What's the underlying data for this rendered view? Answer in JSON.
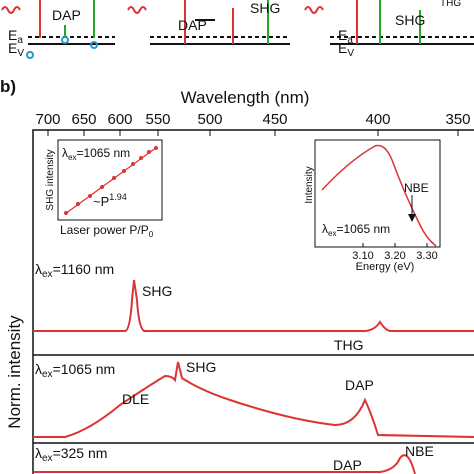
{
  "top_strip": {
    "labels": [
      "DAP",
      "DAP",
      "SHG",
      "SHG",
      "THG"
    ],
    "level_labels": {
      "ea": "E",
      "ea_sub": "a",
      "ev": "E",
      "ev_sub": "V"
    }
  },
  "panel_label": "b)",
  "axes": {
    "x_title": "Wavelength (nm)",
    "x_ticks": [
      "700",
      "650",
      "600",
      "550",
      "500",
      "450",
      "400",
      "350"
    ],
    "y_title": "Norm. intensity"
  },
  "spectra": [
    {
      "excitation": {
        "symbol": "λ",
        "sub": "ex",
        "rest": "=1160 nm"
      },
      "labels": [
        "SHG",
        "THG"
      ]
    },
    {
      "excitation": {
        "symbol": "λ",
        "sub": "ex",
        "rest": "=1065 nm"
      },
      "labels": [
        "SHG",
        "DLE",
        "DAP"
      ]
    },
    {
      "excitation": {
        "symbol": "λ",
        "sub": "ex",
        "rest": "=325 nm"
      },
      "labels": [
        "DAP",
        "NBE"
      ]
    }
  ],
  "inset_power": {
    "y_title": "SHG intensity",
    "excitation": {
      "symbol": "λ",
      "sub": "ex",
      "rest": "=1065 nm"
    },
    "fit": {
      "base": "~P",
      "exponent": "1.94"
    },
    "x_title": {
      "text": "Laser power P/P",
      "sub": "0"
    }
  },
  "inset_energy": {
    "y_title": "Intensity",
    "arrow_label": "NBE",
    "excitation": {
      "symbol": "λ",
      "sub": "ex",
      "rest": "=1065 nm"
    },
    "x_ticks": [
      "3.10",
      "3.20",
      "3.30"
    ],
    "x_title": "Energy (eV)"
  }
}
